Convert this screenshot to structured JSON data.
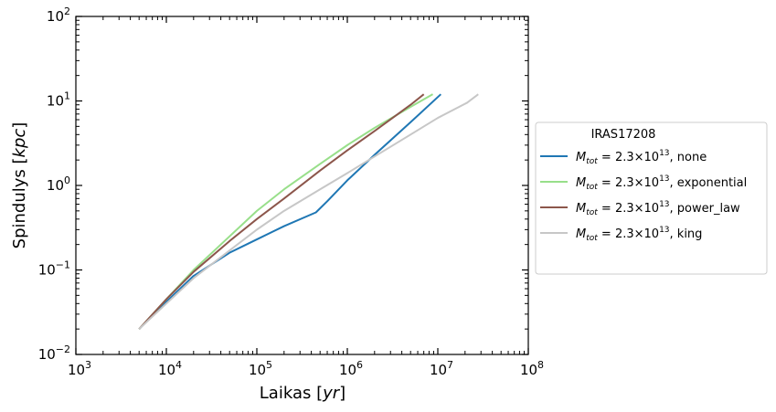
{
  "chart_data": {
    "type": "line",
    "title": "",
    "xlabel": "Laikas [yr]",
    "ylabel": "Spindulys [kpc]",
    "x_scale": "log",
    "y_scale": "log",
    "xlim": [
      1000,
      100000000
    ],
    "ylim": [
      0.01,
      100
    ],
    "x_ticks": [
      {
        "value": 1000,
        "mant": "10",
        "exp": "3"
      },
      {
        "value": 10000,
        "mant": "10",
        "exp": "4"
      },
      {
        "value": 100000,
        "mant": "10",
        "exp": "5"
      },
      {
        "value": 1000000,
        "mant": "10",
        "exp": "6"
      },
      {
        "value": 10000000,
        "mant": "10",
        "exp": "7"
      },
      {
        "value": 100000000,
        "mant": "10",
        "exp": "8"
      }
    ],
    "y_ticks": [
      {
        "value": 0.01,
        "mant": "10",
        "exp": "−2"
      },
      {
        "value": 0.1,
        "mant": "10",
        "exp": "−1"
      },
      {
        "value": 1,
        "mant": "10",
        "exp": "0"
      },
      {
        "value": 10,
        "mant": "10",
        "exp": "1"
      },
      {
        "value": 100,
        "mant": "10",
        "exp": "2"
      }
    ],
    "grid": false,
    "legend": {
      "title": "IRAS17208",
      "placement": "outside-right",
      "label_prefix": "M",
      "label_subscript": "tot",
      "label_value": " =  2.3×10",
      "label_exp": "13"
    },
    "series": [
      {
        "name": "none",
        "color": "#1f77b4",
        "points": [
          [
            5000,
            0.02
          ],
          [
            10000,
            0.042
          ],
          [
            20000,
            0.085
          ],
          [
            50000,
            0.16
          ],
          [
            100000,
            0.23
          ],
          [
            200000,
            0.33
          ],
          [
            450000,
            0.48
          ],
          [
            600000,
            0.65
          ],
          [
            1000000,
            1.15
          ],
          [
            2000000,
            2.3
          ],
          [
            5000000,
            5.6
          ],
          [
            10800000,
            12
          ]
        ]
      },
      {
        "name": "exponential",
        "color": "#98df8a",
        "points": [
          [
            5000,
            0.02
          ],
          [
            10000,
            0.045
          ],
          [
            20000,
            0.1
          ],
          [
            50000,
            0.25
          ],
          [
            100000,
            0.5
          ],
          [
            200000,
            0.9
          ],
          [
            500000,
            1.8
          ],
          [
            1000000,
            3.0
          ],
          [
            2000000,
            4.8
          ],
          [
            5000000,
            8.5
          ],
          [
            8800000,
            12
          ]
        ]
      },
      {
        "name": "power_law",
        "color": "#8c564b",
        "points": [
          [
            5000,
            0.02
          ],
          [
            10000,
            0.045
          ],
          [
            20000,
            0.095
          ],
          [
            50000,
            0.22
          ],
          [
            100000,
            0.4
          ],
          [
            200000,
            0.7
          ],
          [
            500000,
            1.5
          ],
          [
            1000000,
            2.6
          ],
          [
            2000000,
            4.4
          ],
          [
            5000000,
            9.0
          ],
          [
            7000000,
            12
          ]
        ]
      },
      {
        "name": "king",
        "color": "#c7c7c7",
        "points": [
          [
            5000,
            0.02
          ],
          [
            10000,
            0.04
          ],
          [
            20000,
            0.08
          ],
          [
            50000,
            0.17
          ],
          [
            100000,
            0.3
          ],
          [
            200000,
            0.5
          ],
          [
            500000,
            0.9
          ],
          [
            1000000,
            1.4
          ],
          [
            2000000,
            2.2
          ],
          [
            5000000,
            4.0
          ],
          [
            10000000,
            6.3
          ],
          [
            21000000,
            9.5
          ],
          [
            28000000,
            12
          ]
        ]
      }
    ]
  }
}
